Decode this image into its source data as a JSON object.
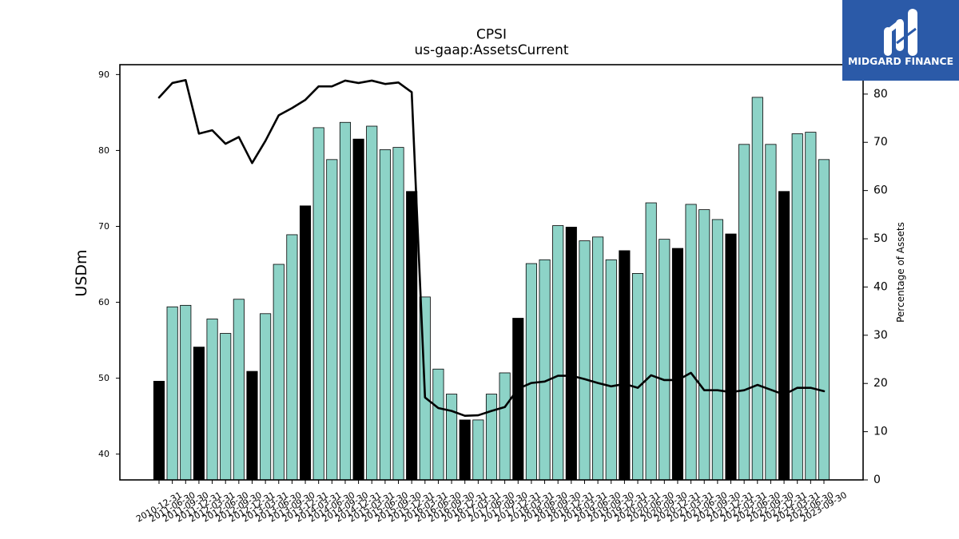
{
  "logo": {
    "text": "MIDGARD FINANCE",
    "icon": "midgard-logo-icon",
    "background_color": "#2b5aa8",
    "text_color": "#ffffff"
  },
  "chart_data": {
    "type": "bar",
    "title": "CPSI",
    "subtitle": "us-gaap:AssetsCurrent",
    "xlabel": "",
    "ylabel": "USDm",
    "y2label": "Percentage of Assets",
    "ylim": [
      36.6,
      91.3
    ],
    "y2lim": [
      0,
      86.1
    ],
    "yticks": [
      40,
      50,
      60,
      70,
      80,
      90
    ],
    "y2ticks": [
      0,
      10,
      20,
      30,
      40,
      50,
      60,
      70,
      80
    ],
    "grid": false,
    "categories": [
      "2010-12-31",
      "2011-06-30",
      "2011-09-30",
      "2011-12-31",
      "2012-03-31",
      "2012-06-30",
      "2012-09-30",
      "2012-12-31",
      "2013-03-31",
      "2013-06-30",
      "2013-09-30",
      "2013-12-31",
      "2014-03-31",
      "2014-06-30",
      "2014-09-30",
      "2014-12-31",
      "2015-03-31",
      "2015-06-30",
      "2015-09-30",
      "2015-12-31",
      "2016-03-31",
      "2016-06-30",
      "2016-09-30",
      "2016-12-31",
      "2017-03-31",
      "2017-06-30",
      "2017-09-30",
      "2017-12-31",
      "2018-03-31",
      "2018-06-30",
      "2018-09-30",
      "2018-12-31",
      "2019-03-31",
      "2019-06-30",
      "2019-09-30",
      "2019-12-31",
      "2020-03-31",
      "2020-06-30",
      "2020-09-30",
      "2020-12-31",
      "2021-03-31",
      "2021-06-30",
      "2021-09-30",
      "2021-12-31",
      "2022-03-31",
      "2022-06-30",
      "2022-09-30",
      "2022-12-31",
      "2023-03-31",
      "2023-06-30",
      "2023-09-30"
    ],
    "series": [
      {
        "type": "bar",
        "axis": "left",
        "color": "#8dd3c7",
        "highlight_color": "#000000",
        "edge_color": "#000000",
        "highlight_indices": [
          0,
          3,
          7,
          11,
          15,
          19,
          23,
          27,
          31,
          35,
          39,
          43,
          47
        ],
        "values": [
          49.6,
          59.4,
          59.6,
          54.1,
          57.8,
          55.9,
          60.4,
          50.9,
          58.5,
          65.0,
          68.9,
          72.7,
          83.0,
          78.8,
          83.7,
          81.5,
          83.2,
          80.1,
          80.4,
          74.6,
          60.7,
          51.2,
          47.9,
          44.5,
          44.5,
          47.9,
          50.7,
          57.9,
          65.1,
          65.6,
          70.1,
          69.9,
          68.1,
          68.6,
          65.6,
          66.8,
          63.8,
          73.1,
          68.3,
          67.1,
          72.9,
          72.2,
          70.9,
          69.0,
          80.8,
          87.0,
          80.8,
          74.6,
          82.2,
          82.4,
          78.8
        ]
      },
      {
        "type": "line",
        "axis": "right",
        "color": "#000000",
        "values": [
          79.3,
          82.3,
          82.9,
          71.8,
          72.5,
          69.7,
          71.1,
          65.7,
          70.3,
          75.6,
          77.1,
          78.8,
          81.6,
          81.6,
          82.8,
          82.3,
          82.8,
          82.1,
          82.4,
          80.4,
          17.1,
          14.9,
          14.3,
          13.3,
          13.4,
          14.3,
          15.1,
          18.9,
          20.1,
          20.4,
          21.6,
          21.6,
          20.9,
          20.1,
          19.4,
          19.9,
          19.1,
          21.7,
          20.7,
          20.7,
          22.2,
          18.6,
          18.6,
          18.2,
          18.6,
          19.7,
          18.7,
          17.7,
          19.1,
          19.1,
          18.4
        ]
      }
    ]
  }
}
